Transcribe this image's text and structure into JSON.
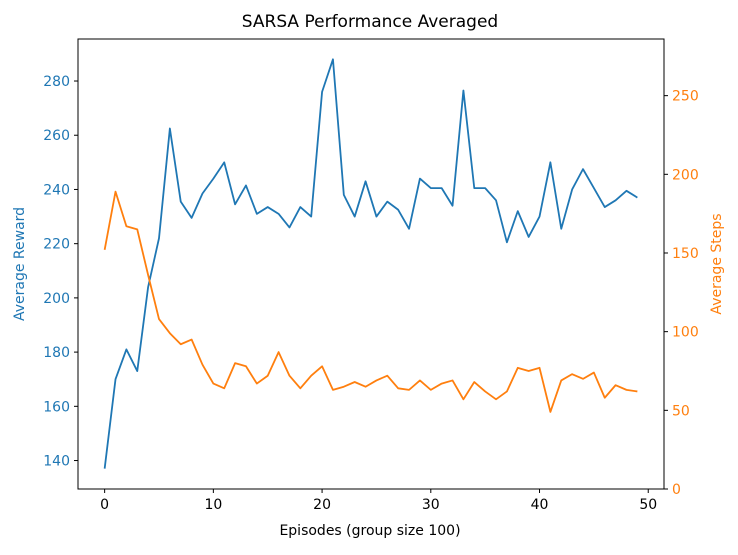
{
  "chart_data": {
    "type": "line",
    "title": "SARSA Performance Averaged",
    "xlabel": "Episodes (group size 100)",
    "ylabel": "Average Reward",
    "y2label": "Average Steps",
    "xlim": [
      -2.45,
      51.45
    ],
    "ylim": [
      129.5,
      295.5
    ],
    "y2lim": [
      0,
      286
    ],
    "xticks": [
      0,
      10,
      20,
      30,
      40,
      50
    ],
    "yticks": [
      140,
      160,
      180,
      200,
      220,
      240,
      260,
      280
    ],
    "y2ticks": [
      0,
      50,
      100,
      150,
      200,
      250
    ],
    "grid": false,
    "x": [
      0,
      1,
      2,
      3,
      4,
      5,
      6,
      7,
      8,
      9,
      10,
      11,
      12,
      13,
      14,
      15,
      16,
      17,
      18,
      19,
      20,
      21,
      22,
      23,
      24,
      25,
      26,
      27,
      28,
      29,
      30,
      31,
      32,
      33,
      34,
      35,
      36,
      37,
      38,
      39,
      40,
      41,
      42,
      43,
      44,
      45,
      46,
      47,
      48,
      49
    ],
    "series": [
      {
        "axis": "left",
        "color": "#1f77b4",
        "values": [
          137,
          170,
          181,
          173,
          204,
          222,
          262.5,
          235.5,
          229.5,
          238.5,
          244,
          250,
          234.5,
          241.5,
          231,
          233.5,
          231,
          226,
          233.5,
          230,
          276,
          288,
          238,
          230,
          243,
          230,
          235.5,
          232.5,
          225.5,
          244,
          240.5,
          240.5,
          234,
          276.5,
          240.5,
          240.5,
          236,
          220.5,
          232,
          222.5,
          230,
          250,
          225.5,
          240,
          247.5,
          240.5,
          233.5,
          236,
          239.5,
          237
        ]
      },
      {
        "axis": "right",
        "color": "#ff7f0e",
        "values": [
          152,
          189,
          167,
          165,
          136,
          108,
          99,
          92,
          95,
          79,
          67,
          64,
          80,
          78,
          67,
          72,
          87,
          72,
          64,
          72,
          78,
          63,
          65,
          68,
          65,
          69,
          72,
          64,
          63,
          69,
          63,
          67,
          69,
          57,
          68,
          62,
          57,
          62,
          77,
          75,
          77,
          49,
          69,
          73,
          70,
          74,
          58,
          66,
          63,
          62
        ]
      }
    ]
  }
}
